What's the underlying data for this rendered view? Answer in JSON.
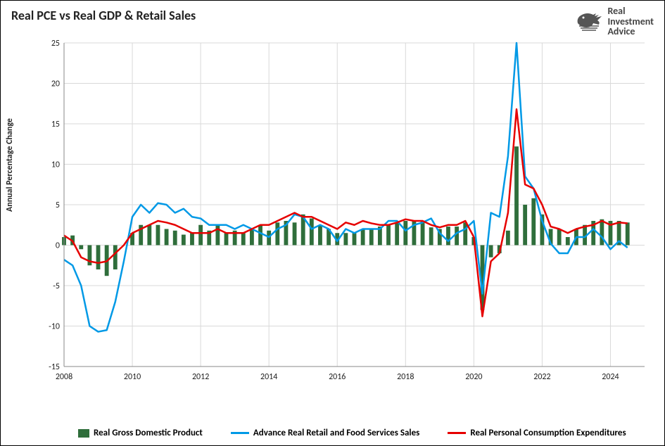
{
  "title": "Real PCE vs Real GDP & Retail Sales",
  "logo": {
    "line1": "Real",
    "line2": "Investment",
    "line3": "Advice",
    "color": "#555555"
  },
  "ylabel": "Annual Percentage Change",
  "chart": {
    "type": "bar+line",
    "background_color": "#ffffff",
    "grid_color": "#d9d9d9",
    "axis_color": "#888888",
    "tick_fontsize": 12,
    "ylim": [
      -15,
      25
    ],
    "ytick_step": 5,
    "xlim": [
      2008,
      2025
    ],
    "xtick_step": 2,
    "x_start": 2008.0,
    "x_step": 0.25,
    "bar_width": 0.12,
    "series": {
      "gdp": {
        "label": "Real Gross Domestic Product",
        "type": "bar",
        "color": "#2f6e3b",
        "values": [
          1.0,
          1.2,
          -0.5,
          -2.5,
          -3.0,
          -3.8,
          -3.0,
          0.0,
          1.5,
          2.5,
          2.5,
          2.5,
          2.0,
          1.8,
          1.3,
          1.5,
          2.5,
          1.8,
          2.5,
          1.5,
          1.8,
          1.5,
          2.0,
          2.5,
          1.8,
          2.8,
          3.0,
          2.8,
          3.8,
          3.3,
          2.5,
          2.0,
          1.5,
          1.5,
          1.5,
          2.0,
          2.0,
          2.3,
          2.5,
          2.8,
          3.0,
          3.0,
          3.0,
          2.2,
          2.0,
          2.3,
          2.3,
          2.8,
          1.0,
          -8.0,
          -1.5,
          -1.0,
          1.8,
          12.2,
          5.0,
          5.8,
          3.8,
          2.0,
          2.0,
          1.0,
          2.0,
          2.5,
          3.0,
          3.2,
          3.0,
          3.0,
          2.8
        ]
      },
      "retail": {
        "label": "Advance Real Retail and Food Services Sales",
        "type": "line",
        "color": "#0099e6",
        "line_width": 2.5,
        "values": [
          -1.8,
          -2.5,
          -5.0,
          -10.0,
          -10.7,
          -10.5,
          -7.0,
          -2.0,
          3.5,
          5.0,
          4.0,
          5.2,
          5.0,
          4.0,
          4.5,
          3.5,
          3.3,
          2.5,
          2.5,
          2.5,
          2.0,
          2.5,
          2.0,
          1.5,
          1.0,
          2.0,
          2.5,
          3.8,
          3.5,
          2.0,
          2.5,
          2.0,
          0.5,
          2.0,
          1.5,
          2.0,
          2.0,
          2.0,
          3.0,
          3.0,
          1.8,
          2.5,
          2.8,
          3.3,
          1.5,
          0.5,
          1.5,
          2.0,
          3.0,
          -6.0,
          4.0,
          3.5,
          11.0,
          25.0,
          8.5,
          7.0,
          3.0,
          0.2,
          -1.0,
          -1.0,
          1.0,
          1.0,
          2.0,
          1.0,
          -0.5,
          0.5,
          -0.3
        ]
      },
      "pce": {
        "label": "Real Personal Consumption Expenditures",
        "type": "line",
        "color": "#e60000",
        "line_width": 2.5,
        "values": [
          1.2,
          0.5,
          -1.5,
          -2.0,
          -2.2,
          -2.0,
          -1.0,
          0.0,
          1.5,
          2.0,
          2.5,
          3.0,
          2.8,
          2.5,
          2.0,
          1.5,
          1.5,
          1.5,
          2.0,
          1.5,
          1.5,
          1.5,
          2.0,
          2.5,
          2.5,
          3.0,
          3.5,
          4.0,
          3.5,
          3.5,
          3.0,
          2.5,
          2.0,
          2.8,
          2.5,
          3.0,
          2.7,
          2.5,
          2.5,
          2.8,
          3.2,
          3.0,
          3.0,
          2.5,
          2.2,
          2.5,
          2.5,
          3.0,
          1.0,
          -8.8,
          -2.0,
          -1.0,
          4.0,
          16.8,
          7.5,
          7.0,
          5.0,
          2.3,
          2.0,
          1.5,
          2.0,
          2.3,
          2.5,
          3.0,
          2.5,
          2.8,
          2.7
        ]
      }
    }
  },
  "legend": {
    "items": [
      {
        "key": "gdp",
        "label": "Real Gross Domestic Product"
      },
      {
        "key": "retail",
        "label": "Advance Real Retail and Food Services Sales"
      },
      {
        "key": "pce",
        "label": "Real Personal Consumption Expenditures"
      }
    ]
  }
}
